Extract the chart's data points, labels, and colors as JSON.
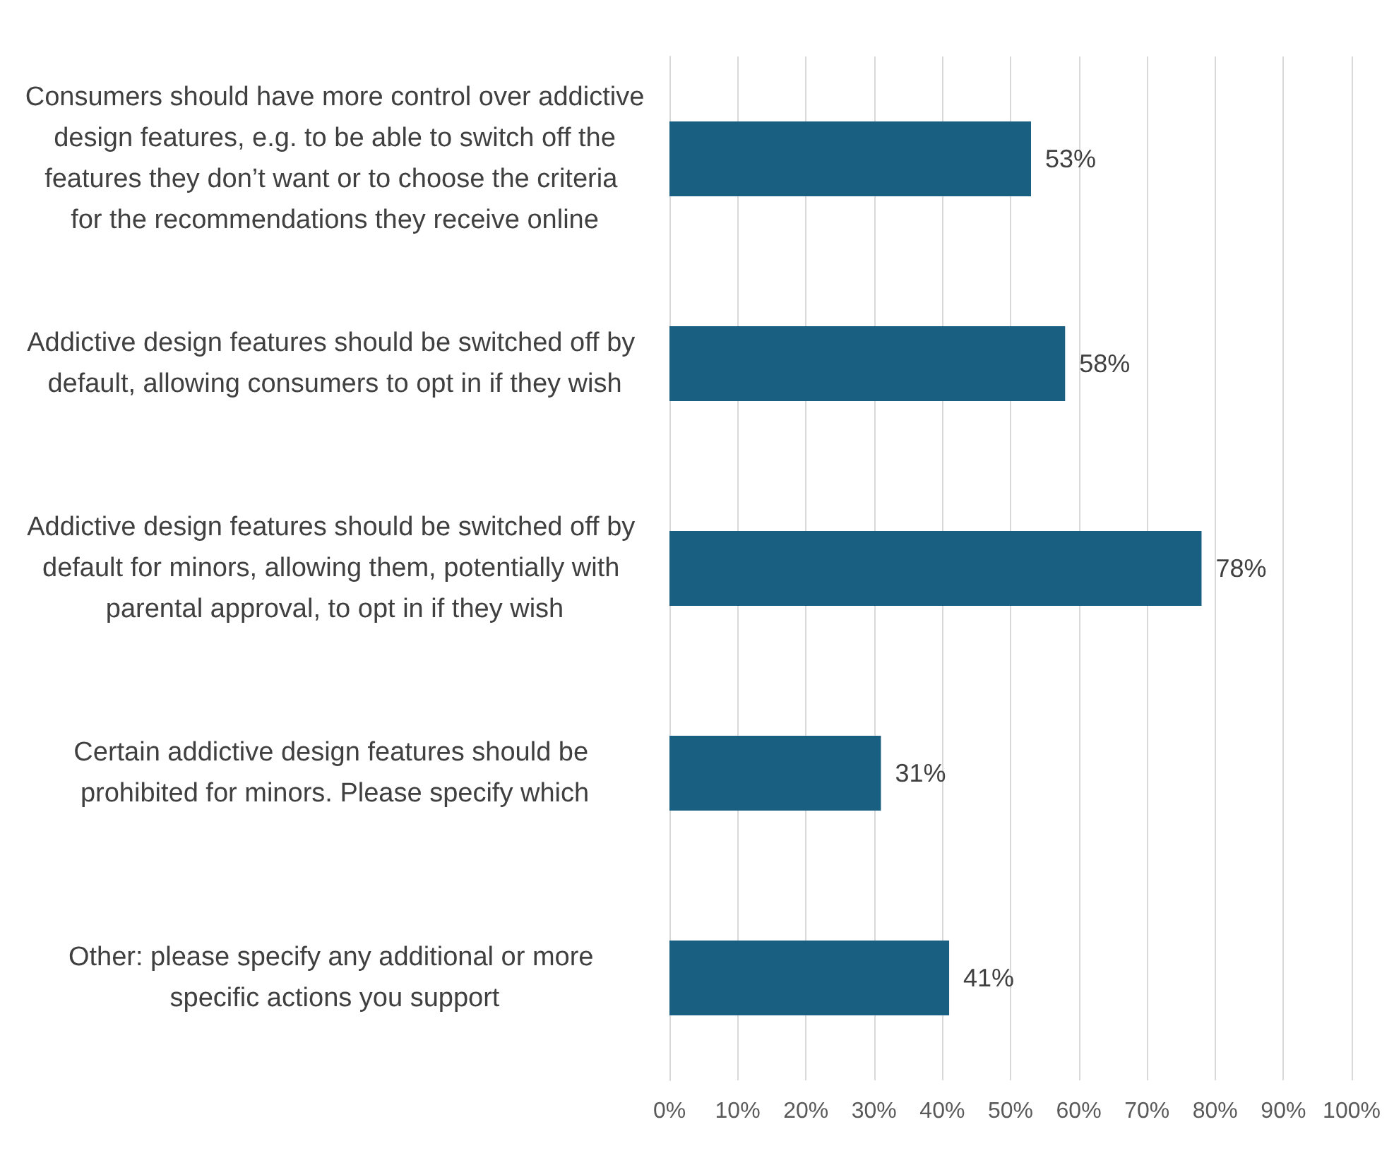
{
  "chart_data": {
    "type": "bar",
    "orientation": "horizontal",
    "categories": [
      "Consumers should have more control over addictive design features, e.g. to be able to switch off the features they don’t want or to choose the criteria for the recommendations they receive online",
      "Addictive design features should be switched off by default, allowing consumers to opt in if they wish",
      "Addictive design features should be switched off by default for minors, allowing them, potentially with parental approval, to opt in if they wish",
      "Certain addictive design features should be prohibited for minors. Please specify which",
      "Other: please specify any additional or more specific actions you support"
    ],
    "values": [
      53,
      58,
      78,
      31,
      41
    ],
    "value_labels": [
      "53%",
      "58%",
      "78%",
      "31%",
      "41%"
    ],
    "color": "#185f81",
    "xlim": [
      0,
      100
    ],
    "xticks": [
      {
        "value": 0,
        "label": "0%"
      },
      {
        "value": 10,
        "label": "10%"
      },
      {
        "value": 20,
        "label": "20%"
      },
      {
        "value": 30,
        "label": "30%"
      },
      {
        "value": 40,
        "label": "40%"
      },
      {
        "value": 50,
        "label": "50%"
      },
      {
        "value": 60,
        "label": "60%"
      },
      {
        "value": 70,
        "label": "70%"
      },
      {
        "value": 80,
        "label": "80%"
      },
      {
        "value": 90,
        "label": "90%"
      },
      {
        "value": 100,
        "label": "100%"
      }
    ],
    "grid": "x"
  }
}
